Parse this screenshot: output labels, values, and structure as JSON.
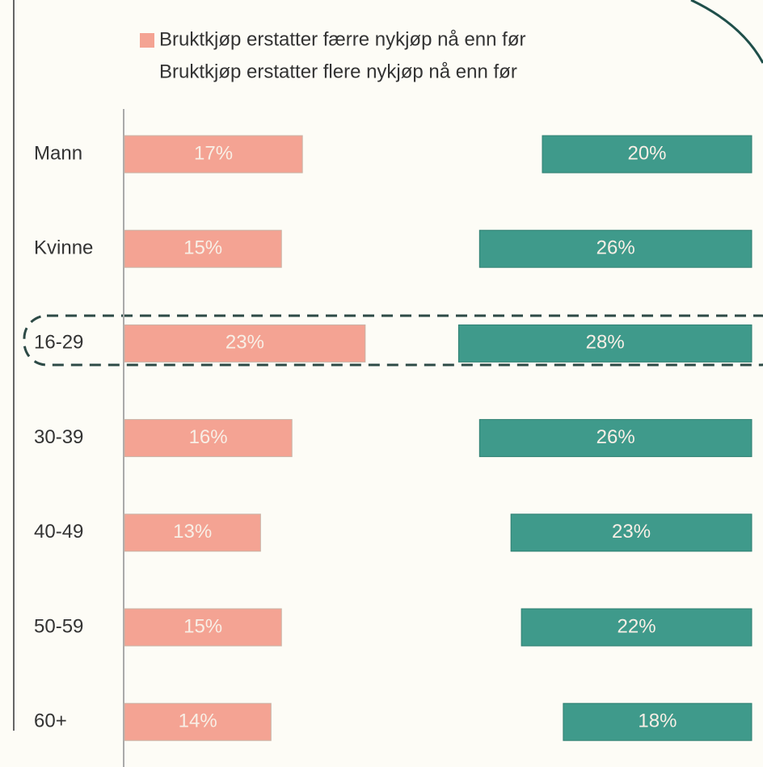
{
  "chart_data": {
    "type": "bar",
    "categories": [
      "Mann",
      "Kvinne",
      "16-29",
      "30-39",
      "40-49",
      "50-59",
      "60+"
    ],
    "xlim": [
      0,
      60
    ],
    "series": [
      {
        "name": "Bruktkjøp erstatter færre nykjøp nå enn før",
        "color": "#f4a393",
        "values": [
          17,
          15,
          23,
          16,
          13,
          15,
          14
        ],
        "value_labels": [
          "17%",
          "15%",
          "23%",
          "16%",
          "13%",
          "15%",
          "14%"
        ]
      },
      {
        "name": "Bruktkjøp erstatter flere nykjøp nå enn før",
        "color": "#3f9a8b",
        "values": [
          20,
          26,
          28,
          26,
          23,
          22,
          18
        ],
        "value_labels": [
          "20%",
          "26%",
          "28%",
          "26%",
          "23%",
          "22%",
          "18%"
        ]
      }
    ]
  }
}
